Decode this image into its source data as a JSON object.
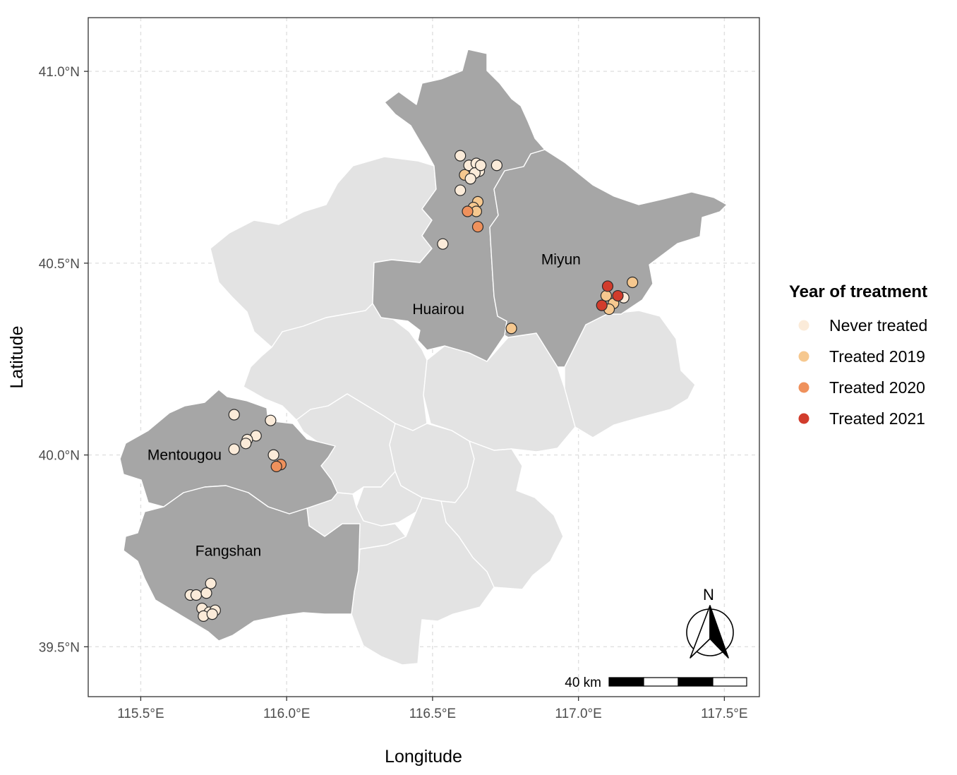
{
  "map": {
    "xlabel": "Longitude",
    "ylabel": "Latitude",
    "xlim": [
      115.32,
      117.62
    ],
    "ylim": [
      39.37,
      41.14
    ],
    "x_ticks": [
      {
        "value": 115.5,
        "label": "115.5°E"
      },
      {
        "value": 116.0,
        "label": "116.0°E"
      },
      {
        "value": 116.5,
        "label": "116.5°E"
      },
      {
        "value": 117.0,
        "label": "117.0°E"
      },
      {
        "value": 117.5,
        "label": "117.5°E"
      }
    ],
    "y_ticks": [
      {
        "value": 39.5,
        "label": "39.5°N"
      },
      {
        "value": 40.0,
        "label": "40.0°N"
      },
      {
        "value": 40.5,
        "label": "40.5°N"
      },
      {
        "value": 41.0,
        "label": "41.0°N"
      }
    ],
    "grid": true,
    "colors": {
      "highlighted_district": "#a6a6a6",
      "other_district": "#e3e3e3",
      "district_border": "#ffffff",
      "panel_border": "#333333",
      "grid": "#e0e0e0"
    },
    "district_labels": [
      {
        "name": "Huairou",
        "lon": 116.52,
        "lat": 40.38
      },
      {
        "name": "Miyun",
        "lon": 116.94,
        "lat": 40.51
      },
      {
        "name": "Mentougou",
        "lon": 115.65,
        "lat": 40.0
      },
      {
        "name": "Fangshan",
        "lon": 115.8,
        "lat": 39.75
      }
    ],
    "legend": {
      "title": "Year of treatment",
      "position": "right",
      "items": [
        {
          "key": "never",
          "label": "Never treated",
          "color": "#fbebd9"
        },
        {
          "key": "y2019",
          "label": "Treated 2019",
          "color": "#f6c88f"
        },
        {
          "key": "y2020",
          "label": "Treated 2020",
          "color": "#ef915c"
        },
        {
          "key": "y2021",
          "label": "Treated 2021",
          "color": "#d13c2c"
        }
      ]
    },
    "scale_bar": {
      "label": "40 km"
    },
    "north_arrow": {
      "label": "N"
    },
    "points": [
      {
        "lon": 116.61,
        "lat": 40.73,
        "group": "y2019"
      },
      {
        "lon": 116.625,
        "lat": 40.755,
        "group": "never"
      },
      {
        "lon": 116.65,
        "lat": 40.76,
        "group": "never"
      },
      {
        "lon": 116.66,
        "lat": 40.74,
        "group": "never"
      },
      {
        "lon": 116.645,
        "lat": 40.735,
        "group": "never"
      },
      {
        "lon": 116.63,
        "lat": 40.72,
        "group": "never"
      },
      {
        "lon": 116.595,
        "lat": 40.78,
        "group": "never"
      },
      {
        "lon": 116.72,
        "lat": 40.755,
        "group": "never"
      },
      {
        "lon": 116.665,
        "lat": 40.755,
        "group": "never"
      },
      {
        "lon": 116.595,
        "lat": 40.69,
        "group": "never"
      },
      {
        "lon": 116.655,
        "lat": 40.66,
        "group": "y2019"
      },
      {
        "lon": 116.64,
        "lat": 40.645,
        "group": "y2019"
      },
      {
        "lon": 116.65,
        "lat": 40.635,
        "group": "y2019"
      },
      {
        "lon": 116.62,
        "lat": 40.635,
        "group": "y2020"
      },
      {
        "lon": 116.655,
        "lat": 40.595,
        "group": "y2020"
      },
      {
        "lon": 116.535,
        "lat": 40.55,
        "group": "never"
      },
      {
        "lon": 116.77,
        "lat": 40.33,
        "group": "y2019"
      },
      {
        "lon": 117.185,
        "lat": 40.45,
        "group": "y2019"
      },
      {
        "lon": 117.095,
        "lat": 40.415,
        "group": "y2019"
      },
      {
        "lon": 117.12,
        "lat": 40.395,
        "group": "y2019"
      },
      {
        "lon": 117.105,
        "lat": 40.38,
        "group": "y2019"
      },
      {
        "lon": 117.155,
        "lat": 40.41,
        "group": "never"
      },
      {
        "lon": 117.1,
        "lat": 40.44,
        "group": "y2021"
      },
      {
        "lon": 117.135,
        "lat": 40.415,
        "group": "y2021"
      },
      {
        "lon": 117.08,
        "lat": 40.39,
        "group": "y2021"
      },
      {
        "lon": 115.82,
        "lat": 40.105,
        "group": "never"
      },
      {
        "lon": 115.945,
        "lat": 40.09,
        "group": "never"
      },
      {
        "lon": 115.895,
        "lat": 40.05,
        "group": "never"
      },
      {
        "lon": 115.865,
        "lat": 40.04,
        "group": "never"
      },
      {
        "lon": 115.86,
        "lat": 40.03,
        "group": "never"
      },
      {
        "lon": 115.82,
        "lat": 40.015,
        "group": "never"
      },
      {
        "lon": 115.955,
        "lat": 40.0,
        "group": "never"
      },
      {
        "lon": 115.98,
        "lat": 39.975,
        "group": "y2020"
      },
      {
        "lon": 115.965,
        "lat": 39.97,
        "group": "y2020"
      },
      {
        "lon": 115.74,
        "lat": 39.665,
        "group": "never"
      },
      {
        "lon": 115.67,
        "lat": 39.635,
        "group": "never"
      },
      {
        "lon": 115.69,
        "lat": 39.635,
        "group": "never"
      },
      {
        "lon": 115.725,
        "lat": 39.64,
        "group": "never"
      },
      {
        "lon": 115.71,
        "lat": 39.6,
        "group": "never"
      },
      {
        "lon": 115.735,
        "lat": 39.59,
        "group": "never"
      },
      {
        "lon": 115.755,
        "lat": 39.595,
        "group": "never"
      },
      {
        "lon": 115.715,
        "lat": 39.58,
        "group": "never"
      },
      {
        "lon": 115.745,
        "lat": 39.585,
        "group": "never"
      }
    ]
  }
}
